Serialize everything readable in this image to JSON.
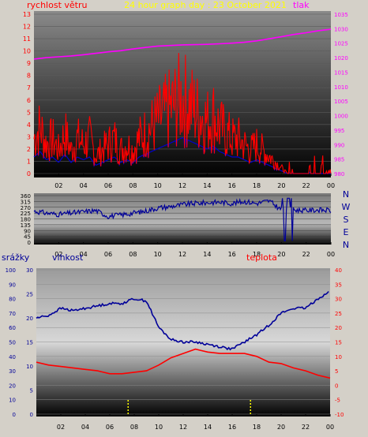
{
  "header": {
    "wind_label": "rychlost větru",
    "title": "24 hour graph day : 23 October 2021",
    "pressure_label": "tlak"
  },
  "directions": [
    "N",
    "W",
    "S",
    "E",
    "N"
  ],
  "bottom_labels": {
    "rain": "srážky",
    "humidity": "vlhkost",
    "temperature": "teplota"
  },
  "colors": {
    "wind": "#ff0000",
    "gust_band": "#0000cc",
    "pressure": "#ff00ff",
    "direction": "#000099",
    "humidity": "#000099",
    "temperature": "#ff0000",
    "rain": "#ffff00",
    "title": "#ffff00"
  },
  "chart_data": [
    {
      "name": "wind_pressure",
      "type": "line",
      "x_ticks": [
        "02",
        "04",
        "06",
        "08",
        "10",
        "12",
        "14",
        "16",
        "18",
        "20",
        "22",
        "00"
      ],
      "y_left": {
        "label": "rychlost větru",
        "ticks": [
          0,
          1,
          2,
          3,
          4,
          5,
          6,
          7,
          8,
          9,
          10,
          11,
          12,
          13
        ],
        "ylim": [
          0,
          13
        ]
      },
      "y_right": {
        "label": "tlak",
        "ticks": [
          980,
          985,
          990,
          995,
          1000,
          1005,
          1010,
          1015,
          1020,
          1025,
          1030,
          1035
        ],
        "ylim": [
          980,
          1035
        ]
      },
      "series": [
        {
          "name": "rychlost větru",
          "axis": "left",
          "x": [
            0,
            0.5,
            1,
            1.5,
            2,
            2.5,
            3,
            3.5,
            4,
            4.5,
            5,
            5.5,
            6,
            6.5,
            7,
            7.5,
            8,
            8.5,
            9,
            9.5,
            10,
            10.5,
            11,
            11.5,
            12,
            12.5,
            13,
            13.5,
            14,
            14.5,
            15,
            15.5,
            16,
            16.5,
            17,
            17.5,
            18,
            18.5,
            19,
            19.5,
            20,
            20.5,
            21,
            21.5,
            22,
            22.5,
            23,
            23.5,
            24
          ],
          "values": [
            3,
            4,
            2.5,
            3,
            2,
            3.5,
            2,
            3,
            2.5,
            3,
            1.5,
            2,
            2.5,
            3,
            2,
            2.5,
            2,
            3,
            3.5,
            4,
            4.5,
            5,
            5.5,
            6,
            6.5,
            6,
            5.5,
            5,
            4.5,
            5,
            4,
            3.5,
            3,
            3,
            2.5,
            2,
            2.5,
            2,
            1.5,
            1,
            0.5,
            0,
            0.5,
            0,
            0.5,
            0,
            0,
            0,
            0
          ]
        },
        {
          "name": "tlak",
          "axis": "right",
          "x": [
            0,
            1,
            2,
            3,
            4,
            5,
            6,
            7,
            8,
            9,
            10,
            11,
            12,
            13,
            14,
            15,
            16,
            17,
            18,
            19,
            20,
            21,
            22,
            23,
            24
          ],
          "values": [
            1019.5,
            1020,
            1020.3,
            1020.6,
            1021,
            1021.5,
            1022,
            1022.4,
            1023,
            1023.5,
            1024,
            1024.2,
            1024.4,
            1024.5,
            1024.6,
            1024.8,
            1025,
            1025.3,
            1025.8,
            1026.5,
            1027.2,
            1028,
            1028.6,
            1029.3,
            1029.8
          ]
        }
      ]
    },
    {
      "name": "wind_direction",
      "type": "line",
      "x_ticks": [
        "02",
        "04",
        "06",
        "08",
        "10",
        "12",
        "14",
        "16",
        "18",
        "20",
        "22",
        "00"
      ],
      "y": {
        "ticks": [
          0,
          45,
          90,
          135,
          180,
          225,
          270,
          315,
          360
        ],
        "ylim": [
          0,
          360
        ]
      },
      "series": [
        {
          "name": "směr",
          "x": [
            0,
            1,
            2,
            3,
            4,
            5,
            6,
            7,
            8,
            9,
            10,
            11,
            12,
            13,
            14,
            15,
            16,
            17,
            18,
            19,
            20,
            21,
            22,
            23,
            24
          ],
          "values": [
            240,
            225,
            215,
            225,
            235,
            245,
            200,
            210,
            225,
            240,
            265,
            275,
            290,
            300,
            305,
            310,
            300,
            315,
            300,
            320,
            250,
            250,
            245,
            250,
            245
          ]
        }
      ]
    },
    {
      "name": "rain_humidity_temperature",
      "type": "line",
      "x_ticks": [
        "02",
        "04",
        "06",
        "08",
        "10",
        "12",
        "14",
        "16",
        "18",
        "20",
        "22",
        "00"
      ],
      "y_rain": {
        "label": "srážky",
        "ticks": [
          0,
          10,
          20,
          30,
          40,
          50,
          60,
          70,
          80,
          90,
          100
        ],
        "ylim": [
          0,
          100
        ]
      },
      "y_humidity": {
        "label": "vlhkost",
        "ticks": [
          0,
          5,
          10,
          15,
          20,
          25,
          30
        ],
        "ylim": [
          0,
          30
        ]
      },
      "y_right": {
        "label": "teplota",
        "ticks": [
          -10,
          -5,
          0,
          5,
          10,
          15,
          20,
          25,
          30,
          35,
          40
        ],
        "ylim": [
          -10,
          40
        ]
      },
      "series": [
        {
          "name": "vlhkost",
          "axis": "humidity",
          "x": [
            0,
            1,
            2,
            3,
            4,
            5,
            6,
            7,
            8,
            9,
            10,
            11,
            12,
            13,
            14,
            15,
            16,
            17,
            18,
            19,
            20,
            21,
            22,
            23,
            24
          ],
          "values": [
            20,
            20.5,
            22,
            21.5,
            22,
            22.5,
            23,
            23,
            24,
            23.5,
            18,
            15.5,
            15,
            15,
            14.5,
            14,
            13.5,
            15,
            16.5,
            18.5,
            21,
            22,
            22,
            24,
            25.5
          ]
        },
        {
          "name": "teplota",
          "axis": "right",
          "x": [
            0,
            1,
            2,
            3,
            4,
            5,
            6,
            7,
            8,
            9,
            10,
            11,
            12,
            13,
            14,
            15,
            16,
            17,
            18,
            19,
            20,
            21,
            22,
            23,
            24
          ],
          "values": [
            8,
            7,
            6.5,
            6,
            5.5,
            5,
            4,
            4,
            4.5,
            5,
            7,
            9.5,
            11,
            12.5,
            11.5,
            11,
            11,
            11,
            10,
            8,
            7.5,
            6,
            5,
            3.5,
            2.5
          ]
        },
        {
          "name": "srážky",
          "axis": "rain",
          "x": [
            7.5,
            17.5
          ],
          "values": [
            10,
            10
          ]
        }
      ]
    }
  ]
}
